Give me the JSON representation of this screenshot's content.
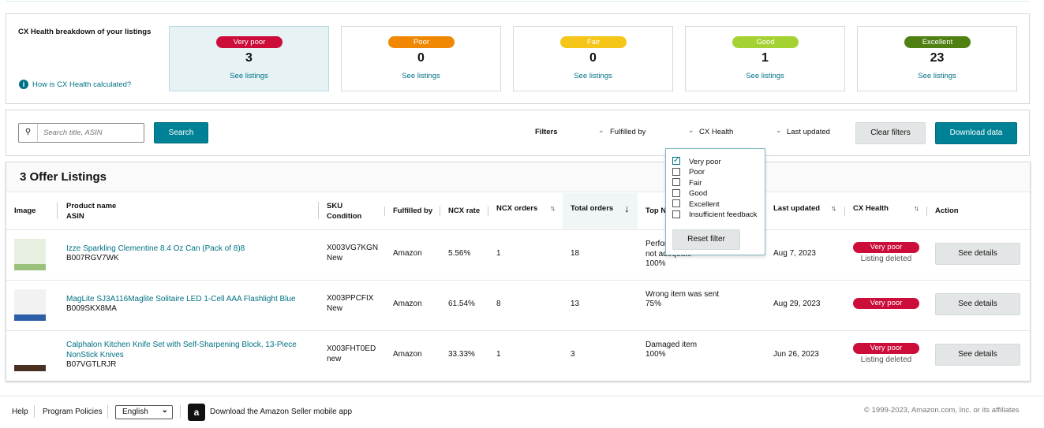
{
  "cx_health": {
    "title": "CX Health breakdown of your listings",
    "help_link": "How is CX Health calculated?",
    "cards": [
      {
        "label": "Very poor",
        "count": "3",
        "link": "See listings"
      },
      {
        "label": "Poor",
        "count": "0",
        "link": "See listings"
      },
      {
        "label": "Fair",
        "count": "0",
        "link": "See listings"
      },
      {
        "label": "Good",
        "count": "1",
        "link": "See listings"
      },
      {
        "label": "Excellent",
        "count": "23",
        "link": "See listings"
      }
    ]
  },
  "toolbar": {
    "search_placeholder": "Search title, ASIN",
    "search_button": "Search",
    "filters_label": "Filters",
    "filters": [
      "Fulfilled by",
      "CX Health",
      "Last updated"
    ],
    "clear_button": "Clear filters",
    "download_button": "Download data"
  },
  "dropdown": {
    "options": [
      {
        "label": "Very poor",
        "checked": true
      },
      {
        "label": "Poor",
        "checked": false
      },
      {
        "label": "Fair",
        "checked": false
      },
      {
        "label": "Good",
        "checked": false
      },
      {
        "label": "Excellent",
        "checked": false
      },
      {
        "label": "Insufficient feedback",
        "checked": false
      }
    ],
    "reset_button": "Reset filter"
  },
  "listings": {
    "title": "3 Offer Listings",
    "columns": {
      "image": "Image",
      "product": [
        "Product name",
        "ASIN"
      ],
      "sku": [
        "SKU",
        "Condition"
      ],
      "fulfilled": "Fulfilled by",
      "ncx_rate": "NCX rate",
      "ncx_orders": "NCX orders",
      "total_orders": "Total orders",
      "top_reason": "Top NCX reason",
      "last_updated": "Last updated",
      "cx_health": "CX Health",
      "action": "Action"
    },
    "rows": [
      {
        "product": "Izze Sparkling Clementine 8.4 Oz Can (Pack of 8)8",
        "asin": "B007RGV7WK",
        "sku": "X003VG7KGN",
        "condition": "New",
        "fulfilled": "Amazon",
        "ncx_rate": "5.56%",
        "ncx_orders": "1",
        "total_orders": "18",
        "reason": "Performance not adequate",
        "reason_pct": "100%",
        "last_updated": "Aug 7, 2023",
        "cx_health": "Very poor",
        "status": "Listing deleted",
        "action": "See details"
      },
      {
        "product": "MagLite SJ3A116Maglite Solitaire LED 1-Cell AAA Flashlight Blue",
        "asin": "B009SKX8MA",
        "sku": "X003PPCFIX",
        "condition": "New",
        "fulfilled": "Amazon",
        "ncx_rate": "61.54%",
        "ncx_orders": "8",
        "total_orders": "13",
        "reason": "Wrong item was sent",
        "reason_pct": "75%",
        "last_updated": "Aug 29, 2023",
        "cx_health": "Very poor",
        "status": null,
        "action": "See details"
      },
      {
        "product": "Calphalon Kitchen Knife Set with Self-Sharpening Block, 13-Piece NonStick Knives",
        "asin": "B07VGTLRJR",
        "sku": "X003FHT0ED",
        "condition": "new",
        "fulfilled": "Amazon",
        "ncx_rate": "33.33%",
        "ncx_orders": "1",
        "total_orders": "3",
        "reason": "Damaged item",
        "reason_pct": "100%",
        "last_updated": "Jun 26, 2023",
        "cx_health": "Very poor",
        "status": "Listing deleted",
        "action": "See details"
      }
    ]
  },
  "footer": {
    "links": [
      "Help",
      "Program Policies"
    ],
    "language": "English",
    "app_text": "Download the Amazon Seller mobile app",
    "copyright": "© 1999-2023, Amazon.com, Inc. or its affiliates"
  }
}
